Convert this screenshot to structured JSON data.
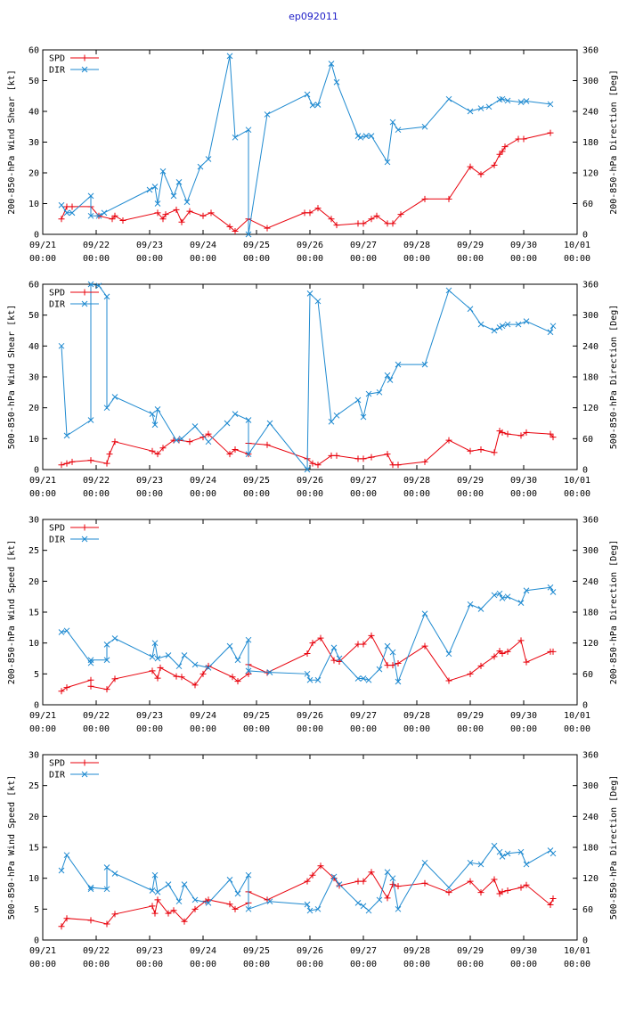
{
  "page": {
    "title": "ep092011"
  },
  "colors": {
    "spd": "#e8000b",
    "dir": "#1f8ad0",
    "axis": "#000000"
  },
  "x_axis": {
    "range": [
      0,
      10
    ],
    "ticks": [
      {
        "v": 0,
        "l1": "09/21",
        "l2": "00:00"
      },
      {
        "v": 1,
        "l1": "09/22",
        "l2": "00:00"
      },
      {
        "v": 2,
        "l1": "09/23",
        "l2": "00:00"
      },
      {
        "v": 3,
        "l1": "09/24",
        "l2": "00:00"
      },
      {
        "v": 4,
        "l1": "09/25",
        "l2": "00:00"
      },
      {
        "v": 5,
        "l1": "09/26",
        "l2": "00:00"
      },
      {
        "v": 6,
        "l1": "09/27",
        "l2": "00:00"
      },
      {
        "v": 7,
        "l1": "09/28",
        "l2": "00:00"
      },
      {
        "v": 8,
        "l1": "09/29",
        "l2": "00:00"
      },
      {
        "v": 9,
        "l1": "09/30",
        "l2": "00:00"
      },
      {
        "v": 10,
        "l1": "10/01",
        "l2": "00:00"
      }
    ]
  },
  "chart_data": [
    {
      "type": "line",
      "ylabel": "200-850-hPa Wind Shear [kt]",
      "y2label": "200-850-hPa Direction [Deg]",
      "ylim": [
        0,
        60
      ],
      "yticks": [
        0,
        10,
        20,
        30,
        40,
        50,
        60
      ],
      "y2lim": [
        0,
        360
      ],
      "y2ticks": [
        0,
        60,
        120,
        180,
        240,
        300,
        360
      ],
      "legend": "top-left",
      "series": [
        {
          "name": "SPD",
          "axis": "y",
          "x": [
            0.35,
            0.45,
            0.55,
            0.9,
            1.05,
            1.3,
            1.35,
            1.5,
            2.15,
            2.25,
            2.3,
            2.5,
            2.6,
            2.75,
            3.0,
            3.15,
            3.5,
            3.6,
            3.85,
            4.2,
            4.9,
            5.0,
            5.15,
            5.4,
            5.5,
            5.9,
            6.0,
            6.15,
            6.25,
            6.45,
            6.55,
            6.7,
            7.15,
            7.6,
            8.0,
            8.2,
            8.45,
            8.55,
            8.6,
            8.65,
            8.9,
            9.0,
            9.5
          ],
          "values": [
            5,
            9,
            9,
            9,
            6,
            5,
            6,
            4.5,
            7,
            5,
            6.5,
            8,
            4,
            7.5,
            6,
            7,
            2.5,
            1,
            5,
            2,
            7,
            7,
            8.5,
            5,
            3,
            3.5,
            3.5,
            5,
            6,
            3.5,
            3.5,
            6.5,
            11.5,
            11.5,
            22,
            19.5,
            22.5,
            26,
            27,
            28.5,
            31,
            31,
            33
          ]
        },
        {
          "name": "DIR",
          "axis": "y2",
          "x": [
            0.35,
            0.45,
            0.55,
            0.9,
            0.9,
            1.05,
            1.15,
            2.0,
            2.1,
            2.15,
            2.25,
            2.45,
            2.55,
            2.7,
            2.95,
            3.1,
            3.5,
            3.6,
            3.85,
            3.85,
            4.2,
            4.95,
            5.05,
            5.15,
            5.4,
            5.5,
            5.9,
            5.95,
            6.05,
            6.15,
            6.45,
            6.55,
            6.65,
            7.15,
            7.6,
            8.0,
            8.2,
            8.35,
            8.55,
            8.6,
            8.7,
            8.95,
            9.05,
            9.5
          ],
          "values": [
            57,
            42,
            42,
            75,
            36,
            36,
            42,
            87,
            93,
            60,
            123,
            75,
            102,
            63,
            132,
            147,
            348,
            189,
            204,
            0,
            234,
            273,
            252,
            253,
            333,
            297,
            192,
            189,
            192,
            192,
            141,
            219,
            204,
            210,
            264,
            240,
            246,
            249,
            263,
            264,
            261,
            258,
            260,
            254
          ]
        }
      ]
    },
    {
      "type": "line",
      "ylabel": "500-850-hPa Wind Shear [kt]",
      "y2label": "500-850-hPa Direction [Deg]",
      "ylim": [
        0,
        60
      ],
      "yticks": [
        0,
        10,
        20,
        30,
        40,
        50,
        60
      ],
      "y2lim": [
        0,
        360
      ],
      "y2ticks": [
        0,
        60,
        120,
        180,
        240,
        300,
        360
      ],
      "legend": "top-left",
      "series": [
        {
          "name": "SPD",
          "axis": "y",
          "x": [
            0.35,
            0.45,
            0.55,
            0.9,
            1.2,
            1.25,
            1.35,
            2.05,
            2.15,
            2.25,
            2.45,
            2.55,
            2.75,
            3.0,
            3.1,
            3.5,
            3.6,
            3.85,
            3.85,
            4.2,
            4.95,
            5.05,
            5.15,
            5.4,
            5.5,
            5.9,
            6.0,
            6.15,
            6.45,
            6.55,
            6.65,
            7.15,
            7.6,
            8.0,
            8.2,
            8.45,
            8.55,
            8.6,
            8.7,
            8.95,
            9.05,
            9.5,
            9.55
          ],
          "values": [
            1.5,
            2,
            2.5,
            3,
            2,
            5,
            9,
            6,
            5,
            7,
            9.5,
            9.5,
            9,
            10.5,
            11.5,
            5,
            6.5,
            5,
            8.5,
            8,
            3.5,
            2,
            1.5,
            4.5,
            4.5,
            3.5,
            3.5,
            4,
            5,
            1.5,
            1.5,
            2.5,
            9.5,
            6,
            6.5,
            5.5,
            12.5,
            12,
            11.5,
            11,
            12,
            11.5,
            10.5
          ]
        },
        {
          "name": "DIR",
          "axis": "y2",
          "x": [
            0.35,
            0.45,
            0.9,
            0.9,
            1.05,
            1.2,
            1.2,
            1.35,
            2.05,
            2.1,
            2.15,
            2.5,
            2.6,
            2.85,
            3.1,
            3.45,
            3.6,
            3.85,
            3.85,
            4.25,
            4.95,
            5.0,
            5.15,
            5.4,
            5.5,
            5.9,
            6.0,
            6.1,
            6.3,
            6.45,
            6.5,
            6.65,
            7.15,
            7.6,
            8.0,
            8.2,
            8.45,
            8.55,
            8.6,
            8.7,
            8.9,
            9.05,
            9.5,
            9.55
          ],
          "values": [
            240,
            66,
            96,
            360,
            357,
            336,
            120,
            141,
            108,
            87,
            117,
            57,
            60,
            84,
            54,
            90,
            108,
            96,
            30,
            90,
            0,
            342,
            327,
            93,
            105,
            135,
            102,
            147,
            150,
            183,
            174,
            204,
            204,
            348,
            312,
            282,
            270,
            276,
            279,
            282,
            282,
            288,
            267,
            279
          ]
        }
      ]
    },
    {
      "type": "line",
      "ylabel": "200-850-hPa Wind Speed [kt]",
      "y2label": "200-850-hPa Direction [Deg]",
      "ylim": [
        0,
        30
      ],
      "yticks": [
        0,
        5,
        10,
        15,
        20,
        25,
        30
      ],
      "y2lim": [
        0,
        360
      ],
      "y2ticks": [
        0,
        60,
        120,
        180,
        240,
        300,
        360
      ],
      "legend": "top-left",
      "series": [
        {
          "name": "SPD",
          "axis": "y",
          "x": [
            0.35,
            0.45,
            0.9,
            0.9,
            1.2,
            1.35,
            2.05,
            2.15,
            2.2,
            2.5,
            2.6,
            2.85,
            3.0,
            3.1,
            3.55,
            3.65,
            3.85,
            3.85,
            4.2,
            4.95,
            5.05,
            5.2,
            5.45,
            5.55,
            5.9,
            6.0,
            6.15,
            6.45,
            6.55,
            6.65,
            7.15,
            7.6,
            8.0,
            8.2,
            8.45,
            8.55,
            8.6,
            8.7,
            8.95,
            9.05,
            9.5,
            9.55
          ],
          "values": [
            2.2,
            2.8,
            4,
            3,
            2.5,
            4.2,
            5.5,
            4.3,
            6,
            4.6,
            4.5,
            3.2,
            5,
            6.3,
            4.5,
            3.8,
            5,
            6.5,
            5.2,
            8.3,
            10,
            10.8,
            7.2,
            7,
            9.8,
            9.8,
            11.2,
            6.4,
            6.4,
            6.7,
            9.5,
            3.9,
            5,
            6.3,
            7.8,
            8.7,
            8.3,
            8.6,
            10.4,
            6.9,
            8.6,
            8.6
          ]
        },
        {
          "name": "DIR",
          "axis": "y2",
          "x": [
            0.35,
            0.45,
            0.9,
            0.9,
            1.2,
            1.2,
            1.35,
            2.05,
            2.1,
            2.15,
            2.35,
            2.55,
            2.65,
            2.85,
            3.1,
            3.5,
            3.65,
            3.85,
            3.85,
            4.25,
            4.95,
            5.0,
            5.15,
            5.45,
            5.55,
            5.9,
            6.0,
            6.1,
            6.3,
            6.45,
            6.55,
            6.65,
            7.15,
            7.6,
            8.0,
            8.2,
            8.45,
            8.55,
            8.6,
            8.7,
            8.95,
            9.05,
            9.5,
            9.55
          ],
          "values": [
            141,
            144,
            81,
            87,
            87,
            117,
            129,
            93,
            120,
            90,
            96,
            75,
            96,
            78,
            72,
            114,
            87,
            126,
            66,
            63,
            60,
            48,
            48,
            111,
            90,
            51,
            51,
            48,
            69,
            114,
            102,
            45,
            177,
            99,
            195,
            186,
            213,
            216,
            207,
            210,
            198,
            222,
            228,
            219
          ]
        }
      ]
    },
    {
      "type": "line",
      "ylabel": "500-850-hPa Wind Speed [kt]",
      "y2label": "500-850-hPa Direction [Deg]",
      "ylim": [
        0,
        30
      ],
      "yticks": [
        0,
        5,
        10,
        15,
        20,
        25,
        30
      ],
      "y2lim": [
        0,
        360
      ],
      "y2ticks": [
        0,
        60,
        120,
        180,
        240,
        300,
        360
      ],
      "legend": "top-left",
      "series": [
        {
          "name": "SPD",
          "axis": "y",
          "x": [
            0.35,
            0.45,
            0.9,
            1.2,
            1.35,
            2.05,
            2.1,
            2.15,
            2.35,
            2.45,
            2.65,
            2.85,
            3.05,
            3.1,
            3.5,
            3.6,
            3.85,
            3.85,
            4.2,
            4.95,
            5.05,
            5.2,
            5.45,
            5.55,
            5.9,
            6.0,
            6.15,
            6.45,
            6.55,
            6.65,
            7.15,
            7.6,
            8.0,
            8.2,
            8.45,
            8.55,
            8.6,
            8.7,
            8.95,
            9.05,
            9.5,
            9.55
          ],
          "values": [
            2.2,
            3.5,
            3.2,
            2.6,
            4.2,
            5.5,
            4.3,
            6.5,
            4.3,
            4.8,
            3,
            5,
            6.3,
            6.5,
            5.8,
            5,
            6,
            7.8,
            6.5,
            9.5,
            10.5,
            12,
            10,
            8.8,
            9.5,
            9.5,
            11,
            6.8,
            9,
            8.7,
            9.2,
            7.7,
            9.5,
            7.7,
            9.8,
            7.5,
            7.8,
            8,
            8.5,
            8.9,
            5.7,
            6.7
          ]
        },
        {
          "name": "DIR",
          "axis": "y2",
          "x": [
            0.35,
            0.45,
            0.9,
            0.9,
            1.2,
            1.2,
            1.35,
            2.05,
            2.1,
            2.15,
            2.35,
            2.55,
            2.65,
            2.85,
            3.1,
            3.5,
            3.65,
            3.85,
            3.85,
            4.25,
            4.95,
            5.0,
            5.15,
            5.45,
            5.55,
            5.9,
            6.0,
            6.1,
            6.3,
            6.45,
            6.55,
            6.65,
            7.15,
            7.6,
            8.0,
            8.2,
            8.45,
            8.55,
            8.6,
            8.7,
            8.95,
            9.05,
            9.5,
            9.55
          ],
          "values": [
            135,
            165,
            99,
            102,
            99,
            141,
            129,
            96,
            126,
            93,
            108,
            75,
            108,
            78,
            72,
            117,
            90,
            126,
            60,
            75,
            69,
            57,
            60,
            123,
            108,
            72,
            66,
            57,
            78,
            132,
            120,
            60,
            150,
            102,
            150,
            147,
            183,
            171,
            162,
            168,
            171,
            147,
            174,
            168
          ]
        }
      ]
    }
  ]
}
